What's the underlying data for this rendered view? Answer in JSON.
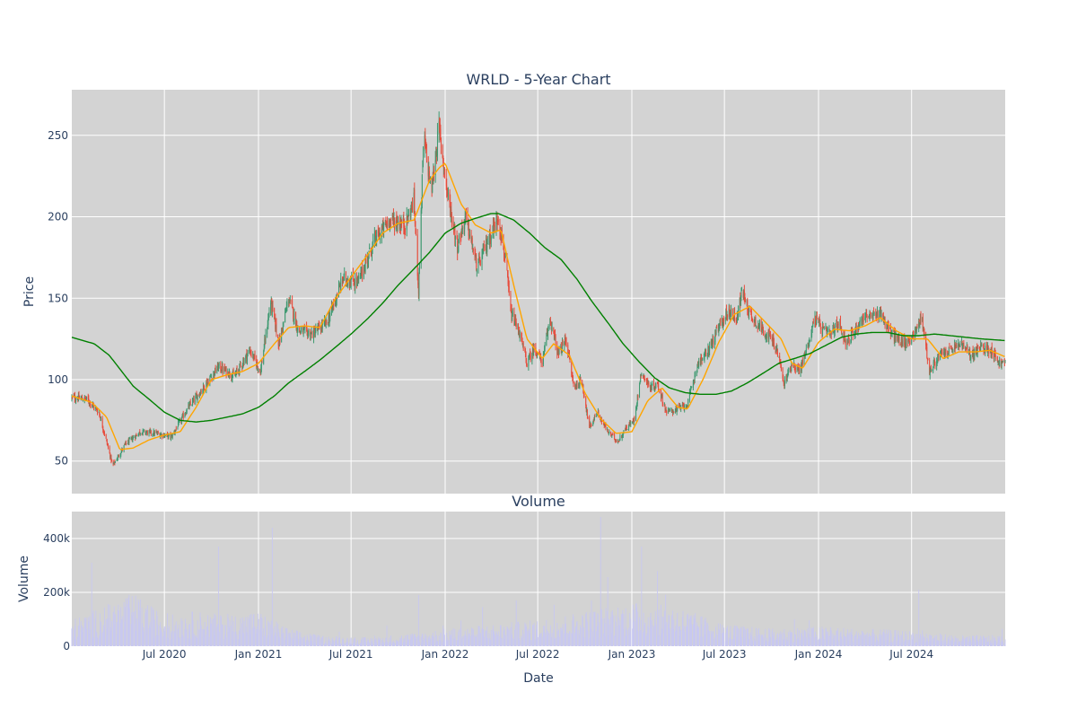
{
  "chart_data": [
    {
      "type": "candlestick",
      "title": "WRLD - 5-Year Chart",
      "ylabel": "Price",
      "xlabel": "",
      "ylim": [
        30,
        278
      ],
      "y_ticks": [
        50,
        100,
        150,
        200,
        250
      ],
      "grid": true,
      "x_range": [
        "2020-01-02",
        "2024-12-31"
      ],
      "up_color": "#3d9970",
      "down_color": "#e74c3c",
      "anchors_close": [
        [
          "2020-01-02",
          89
        ],
        [
          "2020-02-01",
          88
        ],
        [
          "2020-02-24",
          80
        ],
        [
          "2020-03-10",
          62
        ],
        [
          "2020-03-22",
          47
        ],
        [
          "2020-04-15",
          60
        ],
        [
          "2020-05-15",
          68
        ],
        [
          "2020-06-15",
          67
        ],
        [
          "2020-07-15",
          65
        ],
        [
          "2020-08-15",
          82
        ],
        [
          "2020-09-15",
          95
        ],
        [
          "2020-10-15",
          108
        ],
        [
          "2020-11-15",
          102
        ],
        [
          "2020-12-15",
          118
        ],
        [
          "2021-01-05",
          105
        ],
        [
          "2021-01-25",
          148
        ],
        [
          "2021-02-10",
          122
        ],
        [
          "2021-03-01",
          150
        ],
        [
          "2021-03-20",
          130
        ],
        [
          "2021-04-15",
          128
        ],
        [
          "2021-05-15",
          135
        ],
        [
          "2021-06-15",
          162
        ],
        [
          "2021-07-15",
          160
        ],
        [
          "2021-08-15",
          185
        ],
        [
          "2021-09-15",
          198
        ],
        [
          "2021-10-15",
          195
        ],
        [
          "2021-11-01",
          210
        ],
        [
          "2021-11-10",
          155
        ],
        [
          "2021-11-20",
          250
        ],
        [
          "2021-12-05",
          215
        ],
        [
          "2021-12-20",
          255
        ],
        [
          "2022-01-05",
          215
        ],
        [
          "2022-01-25",
          182
        ],
        [
          "2022-02-10",
          200
        ],
        [
          "2022-03-05",
          168
        ],
        [
          "2022-03-25",
          185
        ],
        [
          "2022-04-15",
          200
        ],
        [
          "2022-04-28",
          175
        ],
        [
          "2022-05-10",
          140
        ],
        [
          "2022-05-25",
          130
        ],
        [
          "2022-06-10",
          110
        ],
        [
          "2022-06-25",
          120
        ],
        [
          "2022-07-10",
          110
        ],
        [
          "2022-07-25",
          138
        ],
        [
          "2022-08-10",
          115
        ],
        [
          "2022-08-25",
          125
        ],
        [
          "2022-09-10",
          95
        ],
        [
          "2022-09-25",
          100
        ],
        [
          "2022-10-10",
          70
        ],
        [
          "2022-10-25",
          80
        ],
        [
          "2022-11-15",
          68
        ],
        [
          "2022-12-05",
          62
        ],
        [
          "2022-12-20",
          70
        ],
        [
          "2023-01-05",
          75
        ],
        [
          "2023-01-20",
          105
        ],
        [
          "2023-02-05",
          95
        ],
        [
          "2023-02-20",
          97
        ],
        [
          "2023-03-10",
          80
        ],
        [
          "2023-04-01",
          82
        ],
        [
          "2023-04-20",
          85
        ],
        [
          "2023-05-10",
          110
        ],
        [
          "2023-05-25",
          115
        ],
        [
          "2023-06-10",
          125
        ],
        [
          "2023-06-25",
          135
        ],
        [
          "2023-07-10",
          142
        ],
        [
          "2023-07-25",
          138
        ],
        [
          "2023-08-05",
          155
        ],
        [
          "2023-08-20",
          140
        ],
        [
          "2023-09-10",
          132
        ],
        [
          "2023-10-01",
          125
        ],
        [
          "2023-10-15",
          115
        ],
        [
          "2023-10-25",
          97
        ],
        [
          "2023-11-10",
          110
        ],
        [
          "2023-11-25",
          105
        ],
        [
          "2023-12-10",
          120
        ],
        [
          "2023-12-25",
          138
        ],
        [
          "2024-01-10",
          130
        ],
        [
          "2024-01-25",
          128
        ],
        [
          "2024-02-10",
          135
        ],
        [
          "2024-02-25",
          122
        ],
        [
          "2024-03-15",
          132
        ],
        [
          "2024-04-01",
          140
        ],
        [
          "2024-04-15",
          138
        ],
        [
          "2024-05-01",
          142
        ],
        [
          "2024-05-15",
          132
        ],
        [
          "2024-06-01",
          125
        ],
        [
          "2024-06-20",
          122
        ],
        [
          "2024-07-10",
          130
        ],
        [
          "2024-07-20",
          140
        ],
        [
          "2024-08-05",
          105
        ],
        [
          "2024-08-25",
          115
        ],
        [
          "2024-09-15",
          118
        ],
        [
          "2024-10-05",
          122
        ],
        [
          "2024-10-25",
          115
        ],
        [
          "2024-11-15",
          120
        ],
        [
          "2024-12-05",
          118
        ],
        [
          "2024-12-20",
          110
        ],
        [
          "2024-12-31",
          110
        ]
      ],
      "series": [
        {
          "style": "line",
          "color": "#ffa500",
          "points": [
            [
              "2020-01-02",
              90
            ],
            [
              "2020-02-10",
              86
            ],
            [
              "2020-03-10",
              77
            ],
            [
              "2020-04-05",
              57
            ],
            [
              "2020-05-01",
              58
            ],
            [
              "2020-06-01",
              63
            ],
            [
              "2020-07-01",
              66
            ],
            [
              "2020-08-01",
              68
            ],
            [
              "2020-09-01",
              83
            ],
            [
              "2020-10-01",
              100
            ],
            [
              "2020-11-01",
              103
            ],
            [
              "2020-12-01",
              105
            ],
            [
              "2021-01-01",
              110
            ],
            [
              "2021-02-01",
              122
            ],
            [
              "2021-03-01",
              132
            ],
            [
              "2021-04-01",
              133
            ],
            [
              "2021-05-01",
              132
            ],
            [
              "2021-06-01",
              150
            ],
            [
              "2021-07-01",
              163
            ],
            [
              "2021-08-01",
              176
            ],
            [
              "2021-09-01",
              190
            ],
            [
              "2021-10-01",
              196
            ],
            [
              "2021-11-01",
              198
            ],
            [
              "2021-12-01",
              222
            ],
            [
              "2021-12-20",
              230
            ],
            [
              "2022-01-01",
              233
            ],
            [
              "2022-02-01",
              208
            ],
            [
              "2022-03-01",
              195
            ],
            [
              "2022-04-01",
              190
            ],
            [
              "2022-04-20",
              192
            ],
            [
              "2022-05-15",
              158
            ],
            [
              "2022-06-10",
              125
            ],
            [
              "2022-07-10",
              113
            ],
            [
              "2022-08-01",
              122
            ],
            [
              "2022-09-01",
              115
            ],
            [
              "2022-10-01",
              92
            ],
            [
              "2022-11-01",
              76
            ],
            [
              "2022-12-01",
              67
            ],
            [
              "2023-01-01",
              68
            ],
            [
              "2023-02-01",
              87
            ],
            [
              "2023-03-01",
              95
            ],
            [
              "2023-04-01",
              83
            ],
            [
              "2023-04-20",
              82
            ],
            [
              "2023-05-20",
              100
            ],
            [
              "2023-06-20",
              123
            ],
            [
              "2023-07-20",
              140
            ],
            [
              "2023-08-20",
              145
            ],
            [
              "2023-09-20",
              135
            ],
            [
              "2023-10-20",
              125
            ],
            [
              "2023-11-10",
              110
            ],
            [
              "2023-12-01",
              107
            ],
            [
              "2024-01-01",
              123
            ],
            [
              "2024-02-01",
              131
            ],
            [
              "2024-03-01",
              130
            ],
            [
              "2024-04-01",
              133
            ],
            [
              "2024-05-01",
              138
            ],
            [
              "2024-06-01",
              130
            ],
            [
              "2024-07-01",
              125
            ],
            [
              "2024-08-01",
              125
            ],
            [
              "2024-09-01",
              113
            ],
            [
              "2024-10-01",
              117
            ],
            [
              "2024-11-01",
              117
            ],
            [
              "2024-12-01",
              118
            ],
            [
              "2024-12-31",
              114
            ]
          ]
        },
        {
          "style": "line",
          "color": "#008000",
          "points": [
            [
              "2020-01-02",
              126
            ],
            [
              "2020-02-15",
              122
            ],
            [
              "2020-03-15",
              115
            ],
            [
              "2020-05-01",
              96
            ],
            [
              "2020-06-01",
              88
            ],
            [
              "2020-07-01",
              80
            ],
            [
              "2020-08-01",
              75
            ],
            [
              "2020-09-01",
              74
            ],
            [
              "2020-10-01",
              75
            ],
            [
              "2020-11-01",
              77
            ],
            [
              "2020-12-01",
              79
            ],
            [
              "2021-01-01",
              83
            ],
            [
              "2021-02-01",
              90
            ],
            [
              "2021-03-01",
              98
            ],
            [
              "2021-04-01",
              105
            ],
            [
              "2021-05-01",
              112
            ],
            [
              "2021-06-01",
              120
            ],
            [
              "2021-07-01",
              128
            ],
            [
              "2021-08-01",
              137
            ],
            [
              "2021-09-01",
              147
            ],
            [
              "2021-10-01",
              158
            ],
            [
              "2021-11-01",
              168
            ],
            [
              "2021-12-01",
              178
            ],
            [
              "2022-01-01",
              190
            ],
            [
              "2022-02-01",
              196
            ],
            [
              "2022-03-01",
              199
            ],
            [
              "2022-04-01",
              202
            ],
            [
              "2022-04-15",
              202
            ],
            [
              "2022-05-15",
              198
            ],
            [
              "2022-06-15",
              190
            ],
            [
              "2022-07-15",
              181
            ],
            [
              "2022-08-15",
              174
            ],
            [
              "2022-09-15",
              162
            ],
            [
              "2022-10-15",
              148
            ],
            [
              "2022-11-15",
              135
            ],
            [
              "2022-12-15",
              122
            ],
            [
              "2023-01-15",
              111
            ],
            [
              "2023-02-15",
              101
            ],
            [
              "2023-03-15",
              95
            ],
            [
              "2023-04-15",
              92
            ],
            [
              "2023-05-15",
              91
            ],
            [
              "2023-06-15",
              91
            ],
            [
              "2023-07-15",
              93
            ],
            [
              "2023-08-15",
              98
            ],
            [
              "2023-09-15",
              104
            ],
            [
              "2023-10-15",
              110
            ],
            [
              "2023-11-15",
              113
            ],
            [
              "2023-12-15",
              116
            ],
            [
              "2024-01-15",
              121
            ],
            [
              "2024-02-15",
              126
            ],
            [
              "2024-03-15",
              128
            ],
            [
              "2024-04-15",
              129
            ],
            [
              "2024-05-15",
              129
            ],
            [
              "2024-06-15",
              127
            ],
            [
              "2024-07-15",
              127
            ],
            [
              "2024-08-15",
              128
            ],
            [
              "2024-09-15",
              127
            ],
            [
              "2024-10-15",
              126
            ],
            [
              "2024-11-15",
              125
            ],
            [
              "2024-12-31",
              124
            ]
          ]
        }
      ]
    },
    {
      "type": "bar",
      "title": "Volume",
      "ylabel": "Volume",
      "xlabel": "Date",
      "ylim": [
        0,
        500000
      ],
      "y_ticks": [
        0,
        200000,
        400000
      ],
      "y_tick_labels": [
        "0",
        "200k",
        "400k"
      ],
      "x_ticks": [
        "2020-07-01",
        "2021-01-01",
        "2021-07-01",
        "2022-01-01",
        "2022-07-01",
        "2023-01-01",
        "2023-07-01",
        "2024-01-01",
        "2024-07-01"
      ],
      "x_tick_labels": [
        "Jul 2020",
        "Jan 2021",
        "Jul 2021",
        "Jan 2022",
        "Jul 2022",
        "Jan 2023",
        "Jul 2023",
        "Jan 2024",
        "Jul 2024"
      ],
      "bar_color": "#c8c8f0",
      "volume_levels": [
        [
          "2020-01-02",
          60000
        ],
        [
          "2020-03-01",
          90000
        ],
        [
          "2020-05-01",
          120000
        ],
        [
          "2020-07-01",
          70000
        ],
        [
          "2020-09-01",
          80000
        ],
        [
          "2020-11-01",
          70000
        ],
        [
          "2021-01-01",
          80000
        ],
        [
          "2021-03-01",
          40000
        ],
        [
          "2021-05-01",
          25000
        ],
        [
          "2021-08-01",
          20000
        ],
        [
          "2021-11-01",
          30000
        ],
        [
          "2022-01-01",
          40000
        ],
        [
          "2022-04-01",
          50000
        ],
        [
          "2022-07-01",
          60000
        ],
        [
          "2022-10-01",
          80000
        ],
        [
          "2023-01-01",
          100000
        ],
        [
          "2023-04-01",
          90000
        ],
        [
          "2023-07-01",
          50000
        ],
        [
          "2023-10-01",
          40000
        ],
        [
          "2024-01-01",
          45000
        ],
        [
          "2024-04-01",
          40000
        ],
        [
          "2024-07-01",
          35000
        ],
        [
          "2024-10-01",
          25000
        ],
        [
          "2024-12-31",
          25000
        ]
      ],
      "volume_spikes": [
        [
          "2020-02-10",
          310000
        ],
        [
          "2020-10-15",
          370000
        ],
        [
          "2020-12-20",
          310000
        ],
        [
          "2021-01-28",
          440000
        ],
        [
          "2022-11-01",
          480000
        ],
        [
          "2022-12-10",
          260000
        ],
        [
          "2023-01-20",
          370000
        ],
        [
          "2022-05-20",
          170000
        ],
        [
          "2021-11-10",
          190000
        ],
        [
          "2023-06-25",
          200000
        ],
        [
          "2023-11-15",
          100000
        ],
        [
          "2024-07-15",
          210000
        ]
      ]
    }
  ]
}
